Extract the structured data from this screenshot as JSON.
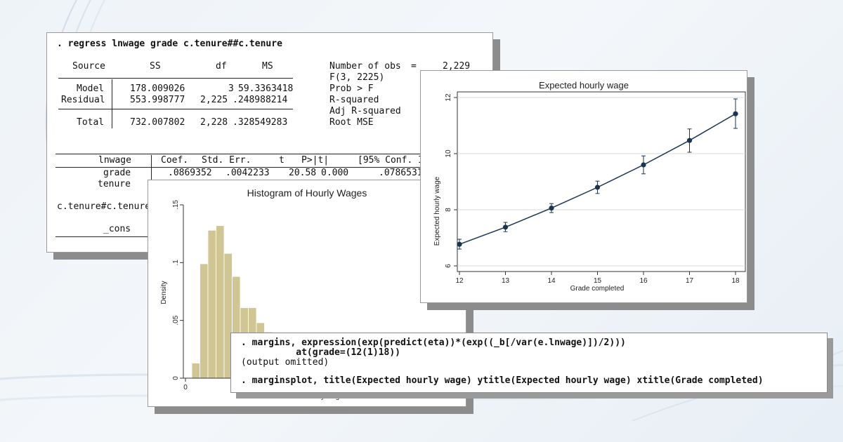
{
  "regression": {
    "command": ". regress lnwage grade c.tenure##c.tenure",
    "anova_headers": [
      "Source",
      "SS",
      "df",
      "MS"
    ],
    "anova_rows": [
      [
        "Model",
        "178.009026",
        "3",
        "59.3363418"
      ],
      [
        "Residual",
        "553.998777",
        "2,225",
        ".248988214"
      ]
    ],
    "anova_total": [
      "Total",
      "732.007802",
      "2,228",
      ".328549283"
    ],
    "stats_labels": [
      "Number of obs",
      "F(3, 2225)",
      "Prob > F",
      "R-squared",
      "Adj R-squared",
      "Root MSE"
    ],
    "stats_eq": "=",
    "nobs_value": "2,229",
    "coef_headers": [
      "lnwage",
      "Coef.",
      "Std. Err.",
      "t",
      "P>|t|",
      "[95% Conf. In"
    ],
    "coef_row_grade": [
      "grade",
      ".0869352",
      ".0042233",
      "20.58",
      "0.000",
      ".0786531"
    ],
    "row_labels": [
      "tenure",
      "c.tenure#c.tenure",
      "_cons"
    ]
  },
  "histogram": {
    "title": "Histogram of Hourly Wages",
    "ylabel": "Density",
    "xlabel": "Hourly wage",
    "y_ticks": [
      "0",
      ".05",
      ".1",
      ".15"
    ],
    "x_ticks": [
      "0"
    ],
    "bar_color": "#cfc694",
    "bar_densities": [
      0.013,
      0.099,
      0.128,
      0.132,
      0.108,
      0.088,
      0.061,
      0.061,
      0.048,
      0.04
    ],
    "ylim": [
      0,
      0.15
    ]
  },
  "marginsplot": {
    "title": "Expected hourly wage",
    "ylabel": "Expected hourly wage",
    "xlabel": "Grade completed",
    "x_ticks": [
      "12",
      "13",
      "14",
      "15",
      "16",
      "17",
      "18"
    ],
    "y_ticks": [
      "6",
      "8",
      "10",
      "12"
    ],
    "line_color": "#1a3552"
  },
  "chart_data": {
    "type": "line",
    "title": "Expected hourly wage",
    "xlabel": "Grade completed",
    "ylabel": "Expected hourly wage",
    "x": [
      12,
      13,
      14,
      15,
      16,
      17,
      18
    ],
    "y": [
      6.77,
      7.38,
      8.06,
      8.8,
      9.6,
      10.47,
      11.42
    ],
    "ci_low": [
      6.6,
      7.22,
      7.9,
      8.58,
      9.28,
      10.05,
      10.9
    ],
    "ci_high": [
      6.95,
      7.55,
      8.22,
      9.02,
      9.92,
      10.88,
      11.95
    ],
    "xlim": [
      12,
      18
    ],
    "ylim": [
      5.8,
      12.2
    ]
  },
  "commands": {
    "margins_line1": ". margins, expression(exp(predict(eta))*(exp((_b[/var(e.lnwage)])/2)))",
    "margins_line2": "          at(grade=(12(1)18))",
    "output_note": "(output omitted)",
    "marginsplot_line": ". marginsplot, title(Expected hourly wage) ytitle(Expected hourly wage) xtitle(Grade completed)"
  }
}
